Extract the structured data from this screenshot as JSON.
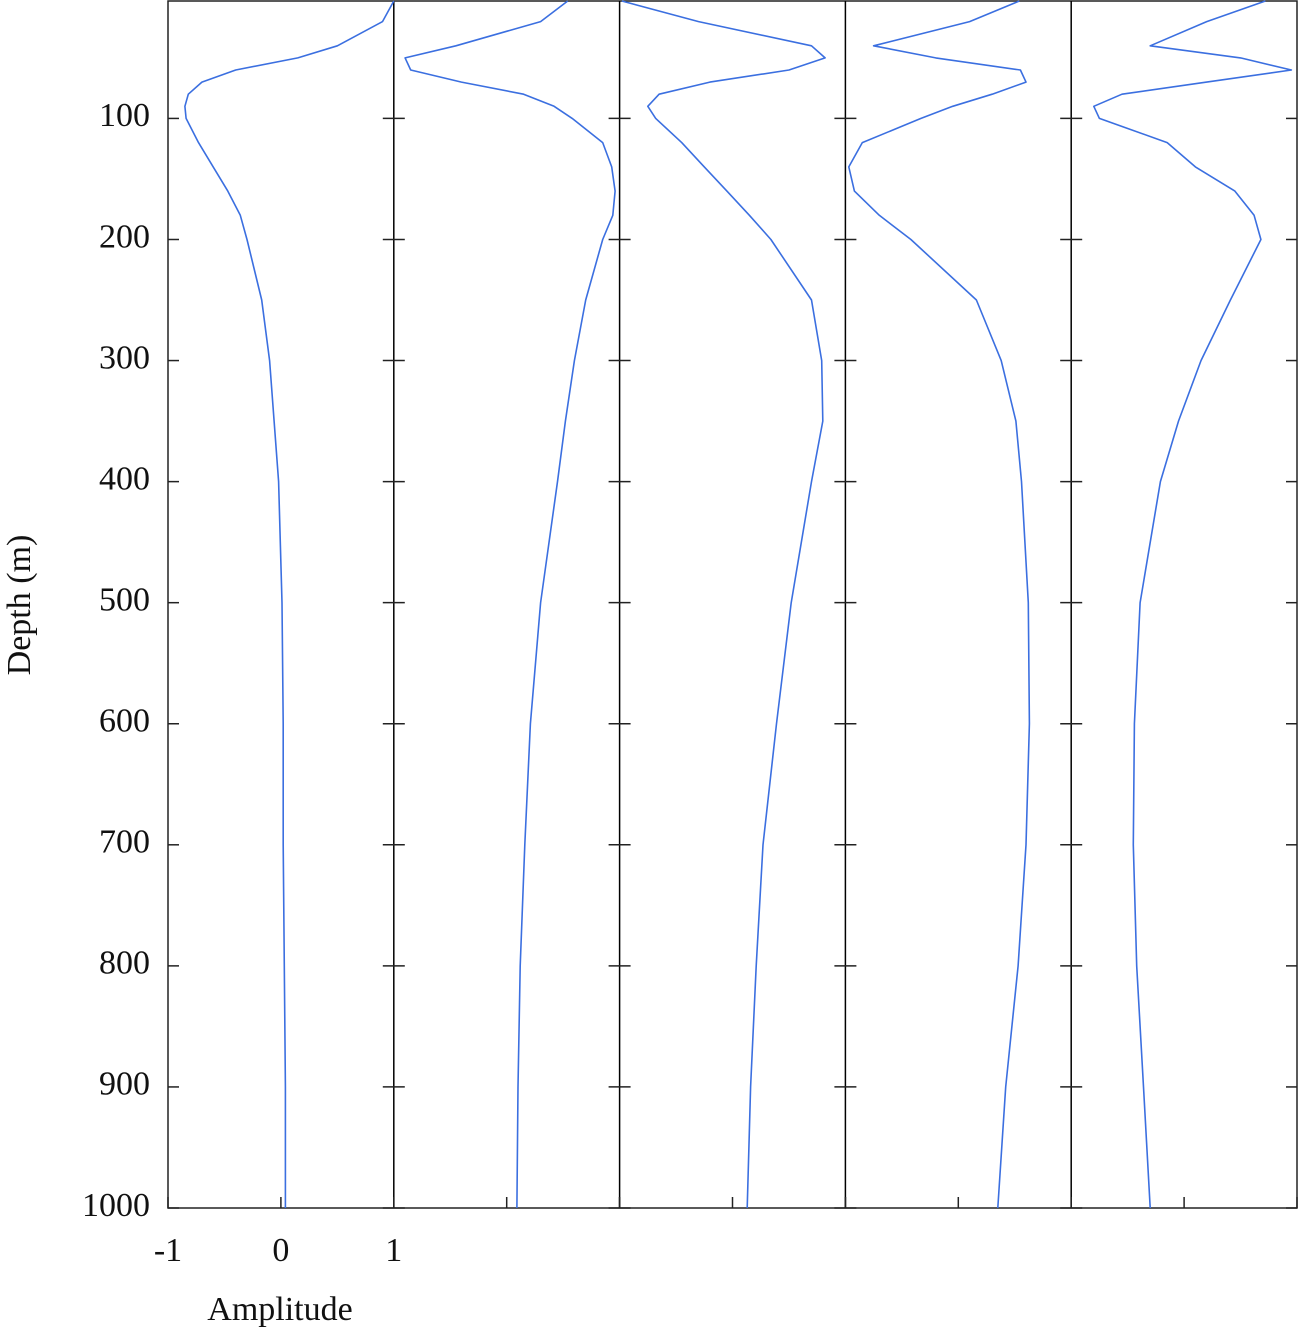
{
  "chart_data": {
    "type": "line",
    "ylabel": "Depth (m)",
    "xlabel": "Amplitude",
    "ylim": [
      3,
      1000
    ],
    "yticks": [
      100,
      200,
      300,
      400,
      500,
      600,
      700,
      800,
      900,
      1000
    ],
    "xlim": [
      -1,
      1
    ],
    "xticks": [
      -1,
      0,
      1
    ],
    "depth": [
      3,
      20,
      40,
      50,
      60,
      70,
      80,
      90,
      100,
      120,
      140,
      160,
      180,
      200,
      250,
      300,
      350,
      400,
      500,
      600,
      700,
      800,
      900,
      1000
    ],
    "series": [
      {
        "color": "#3b6fe0",
        "values": [
          1.0,
          0.9,
          0.5,
          0.15,
          -0.4,
          -0.7,
          -0.82,
          -0.85,
          -0.84,
          -0.73,
          -0.6,
          -0.47,
          -0.36,
          -0.3,
          -0.17,
          -0.1,
          -0.06,
          -0.02,
          0.01,
          0.02,
          0.02,
          0.03,
          0.04,
          0.04
        ]
      },
      {
        "color": "#3b6fe0",
        "values": [
          0.54,
          0.3,
          -0.45,
          -0.9,
          -0.85,
          -0.4,
          0.15,
          0.42,
          0.58,
          0.85,
          0.93,
          0.96,
          0.94,
          0.85,
          0.7,
          0.6,
          0.52,
          0.45,
          0.3,
          0.21,
          0.16,
          0.12,
          0.1,
          0.09
        ]
      },
      {
        "color": "#3b6fe0",
        "values": [
          -0.98,
          -0.3,
          0.7,
          0.82,
          0.5,
          -0.2,
          -0.65,
          -0.75,
          -0.68,
          -0.45,
          -0.25,
          -0.05,
          0.15,
          0.34,
          0.7,
          0.79,
          0.8,
          0.7,
          0.52,
          0.39,
          0.27,
          0.21,
          0.16,
          0.13
        ]
      },
      {
        "color": "#3b6fe0",
        "values": [
          0.54,
          0.1,
          -0.75,
          -0.2,
          0.55,
          0.6,
          0.3,
          -0.05,
          -0.33,
          -0.85,
          -0.97,
          -0.92,
          -0.7,
          -0.42,
          0.16,
          0.38,
          0.51,
          0.56,
          0.62,
          0.63,
          0.6,
          0.53,
          0.42,
          0.35
        ]
      },
      {
        "color": "#3b6fe0",
        "values": [
          0.72,
          0.2,
          -0.3,
          0.5,
          0.95,
          0.2,
          -0.55,
          -0.8,
          -0.75,
          -0.15,
          0.1,
          0.45,
          0.62,
          0.68,
          0.41,
          0.15,
          -0.05,
          -0.21,
          -0.39,
          -0.44,
          -0.45,
          -0.42,
          -0.36,
          -0.3
        ]
      }
    ]
  }
}
